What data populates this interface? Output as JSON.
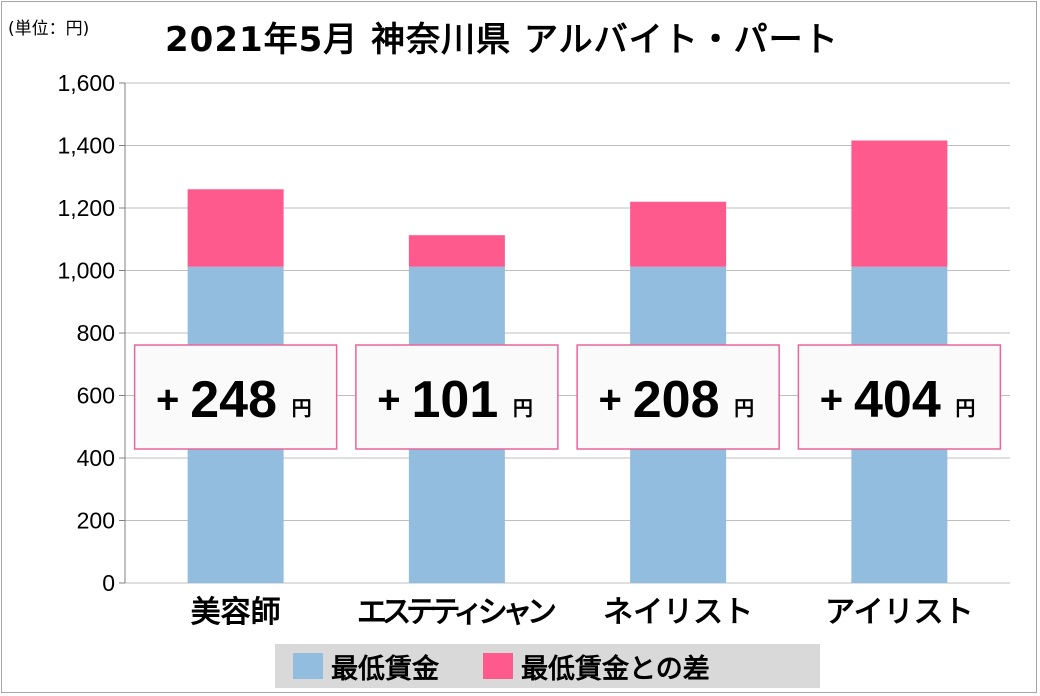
{
  "unit_label": "(単位：円)",
  "title": "2021年5月 神奈川県 アルバイト・パート",
  "colors": {
    "base": "#92bddf",
    "diff": "#ff5a8d",
    "box_border": "#e8669a",
    "box_fill": "#fafafa",
    "grid": "#bfbfbf"
  },
  "chart_data": {
    "type": "bar",
    "stacked": true,
    "title": "2021年5月 神奈川県 アルバイト・パート",
    "ylabel": "(単位：円)",
    "ylim": [
      0,
      1600
    ],
    "yticks": [
      0,
      200,
      400,
      600,
      800,
      1000,
      1200,
      1400,
      1600
    ],
    "ytick_labels": [
      "0",
      "200",
      "400",
      "600",
      "800",
      "1,000",
      "1,200",
      "1,400",
      "1,600"
    ],
    "categories": [
      "美容師",
      "エステティシャン",
      "ネイリスト",
      "アイリスト"
    ],
    "series": [
      {
        "name": "最低賃金",
        "values": [
          1012,
          1012,
          1012,
          1012
        ]
      },
      {
        "name": "最低賃金との差",
        "values": [
          248,
          101,
          208,
          404
        ]
      }
    ],
    "annotations": [
      {
        "plus": "+",
        "value": "248",
        "unit": "円"
      },
      {
        "plus": "+",
        "value": "101",
        "unit": "円"
      },
      {
        "plus": "+",
        "value": "208",
        "unit": "円"
      },
      {
        "plus": "+",
        "value": "404",
        "unit": "円"
      }
    ],
    "legend_position": "bottom"
  }
}
